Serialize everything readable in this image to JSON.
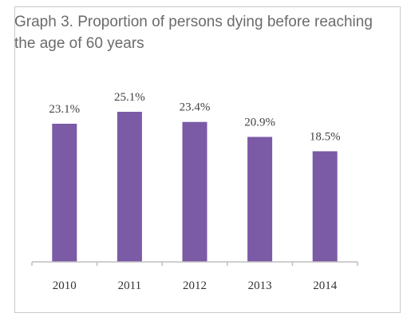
{
  "chart_data": {
    "type": "bar",
    "title": "Graph 3. Proportion of persons dying before reaching the age of 60 years",
    "categories": [
      "2010",
      "2011",
      "2012",
      "2013",
      "2014"
    ],
    "values": [
      23.1,
      25.1,
      23.4,
      20.9,
      18.5
    ],
    "data_labels": [
      "23.1%",
      "25.1%",
      "23.4%",
      "20.9%",
      "18.5%"
    ],
    "xlabel": "",
    "ylabel": "",
    "ylim": [
      0,
      25.1
    ],
    "grid": false,
    "legend": "none",
    "bar_color": "#7b5aa6"
  }
}
